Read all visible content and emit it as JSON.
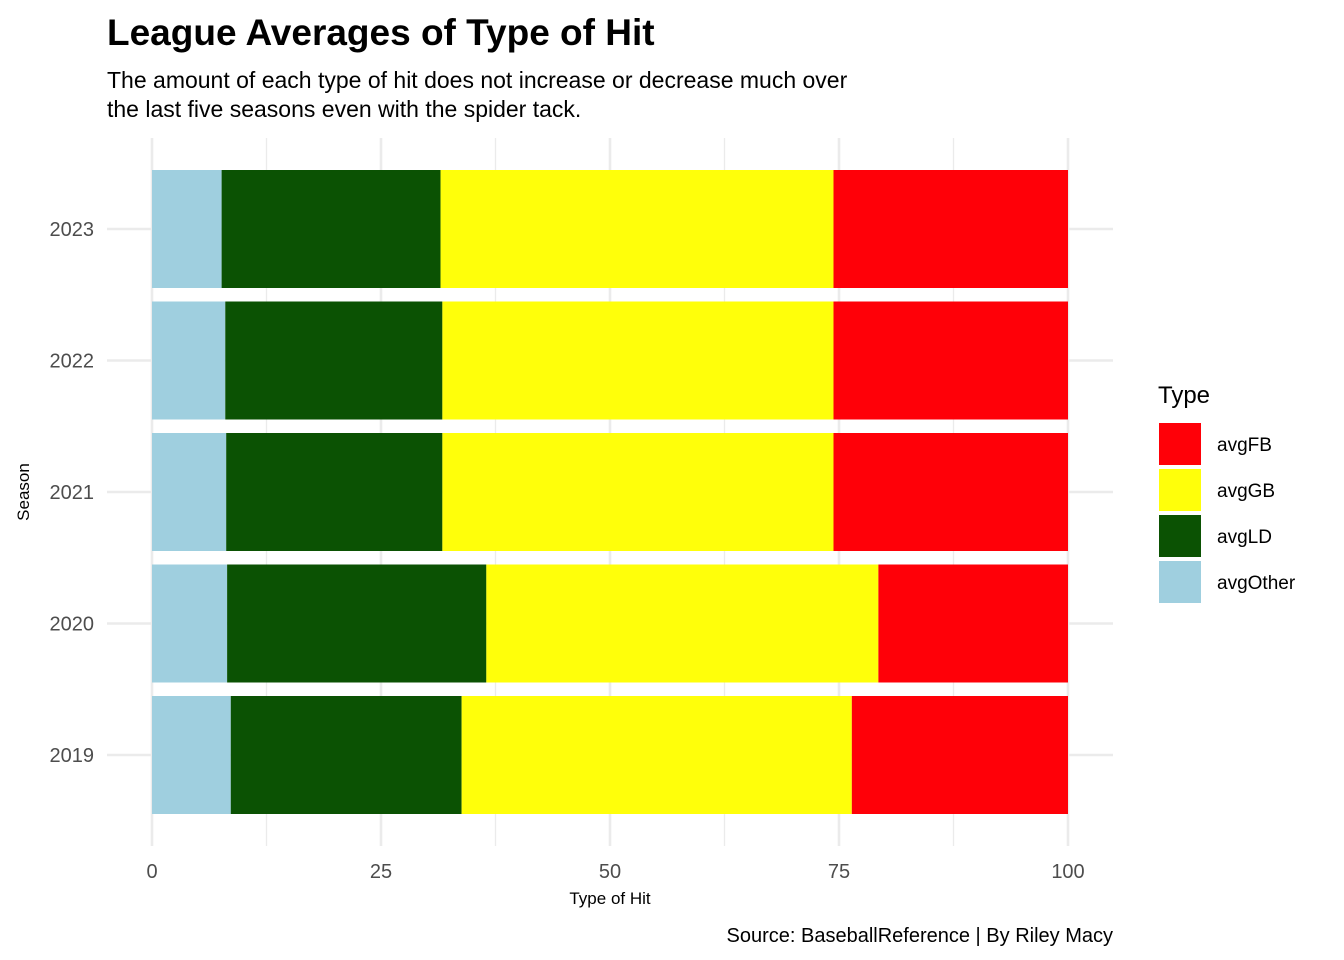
{
  "colors": {
    "avgFB": "#ff0008",
    "avgGB": "#ffff0a",
    "avgLD": "#0b5203",
    "avgOther": "#9fcfdf",
    "grid": "#ebebeb",
    "tick_text": "#4d4d4d"
  },
  "chart_data": {
    "type": "bar",
    "orientation": "horizontal",
    "stacked": true,
    "title": "League Averages of Type of Hit",
    "subtitle_lines": [
      "The amount of each type of hit does not increase or decrease much over",
      "the last five seasons even with the spider tack."
    ],
    "xlabel": "Type of Hit",
    "ylabel": "Season",
    "caption": "Source: BaseballReference | By Riley Macy",
    "xlim": [
      0,
      100
    ],
    "x_ticks": [
      0,
      25,
      50,
      75,
      100
    ],
    "x_tick_labels": [
      "0",
      "25",
      "50",
      "75",
      "100"
    ],
    "categories": [
      "2019",
      "2020",
      "2021",
      "2022",
      "2023"
    ],
    "series": [
      {
        "name": "avgOther",
        "values": [
          8.6,
          8.2,
          8.1,
          8.0,
          7.6
        ]
      },
      {
        "name": "avgLD",
        "values": [
          25.2,
          28.3,
          23.6,
          23.7,
          23.9
        ]
      },
      {
        "name": "avgGB",
        "values": [
          42.6,
          42.8,
          42.7,
          42.7,
          42.9
        ]
      },
      {
        "name": "avgFB",
        "values": [
          23.6,
          20.7,
          25.6,
          25.6,
          25.6
        ]
      }
    ],
    "legend": {
      "title": "Type",
      "position": "right",
      "entries": [
        "avgFB",
        "avgGB",
        "avgLD",
        "avgOther"
      ]
    },
    "grid": true
  }
}
